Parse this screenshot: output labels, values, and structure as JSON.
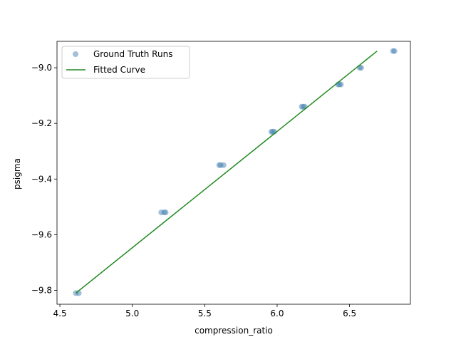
{
  "chart_data": {
    "type": "scatter",
    "xlabel": "compression_ratio",
    "ylabel": "psigma",
    "xlim": [
      4.48,
      6.92
    ],
    "ylim": [
      -9.85,
      -8.905
    ],
    "xticks": [
      4.5,
      5.0,
      5.5,
      6.0,
      6.5
    ],
    "yticks": [
      -9.8,
      -9.6,
      -9.4,
      -9.2,
      -9.0
    ],
    "xtick_labels": [
      "4.5",
      "5.0",
      "5.5",
      "6.0",
      "6.5"
    ],
    "ytick_labels": [
      "−9.8",
      "−9.6",
      "−9.4",
      "−9.2",
      "−9.0"
    ],
    "grid": false,
    "legend_position": "upper-left",
    "series": [
      {
        "name": "Ground Truth Runs",
        "kind": "scatter",
        "color": "#4682b4",
        "alpha": 0.5,
        "points": [
          {
            "x": 4.61,
            "y": -9.81
          },
          {
            "x": 4.63,
            "y": -9.81
          },
          {
            "x": 5.2,
            "y": -9.52
          },
          {
            "x": 5.22,
            "y": -9.52
          },
          {
            "x": 5.23,
            "y": -9.52
          },
          {
            "x": 5.6,
            "y": -9.35
          },
          {
            "x": 5.61,
            "y": -9.35
          },
          {
            "x": 5.63,
            "y": -9.35
          },
          {
            "x": 5.96,
            "y": -9.23
          },
          {
            "x": 5.97,
            "y": -9.23
          },
          {
            "x": 5.98,
            "y": -9.23
          },
          {
            "x": 6.17,
            "y": -9.14
          },
          {
            "x": 6.18,
            "y": -9.14
          },
          {
            "x": 6.19,
            "y": -9.14
          },
          {
            "x": 6.42,
            "y": -9.06
          },
          {
            "x": 6.43,
            "y": -9.06
          },
          {
            "x": 6.44,
            "y": -9.06
          },
          {
            "x": 6.57,
            "y": -9.0
          },
          {
            "x": 6.58,
            "y": -9.0
          },
          {
            "x": 6.8,
            "y": -8.94
          },
          {
            "x": 6.81,
            "y": -8.94
          }
        ]
      },
      {
        "name": "Fitted Curve",
        "kind": "line",
        "color": "#228b22",
        "points": [
          {
            "x": 4.61,
            "y": -9.81
          },
          {
            "x": 6.69,
            "y": -8.94
          }
        ]
      }
    ]
  }
}
